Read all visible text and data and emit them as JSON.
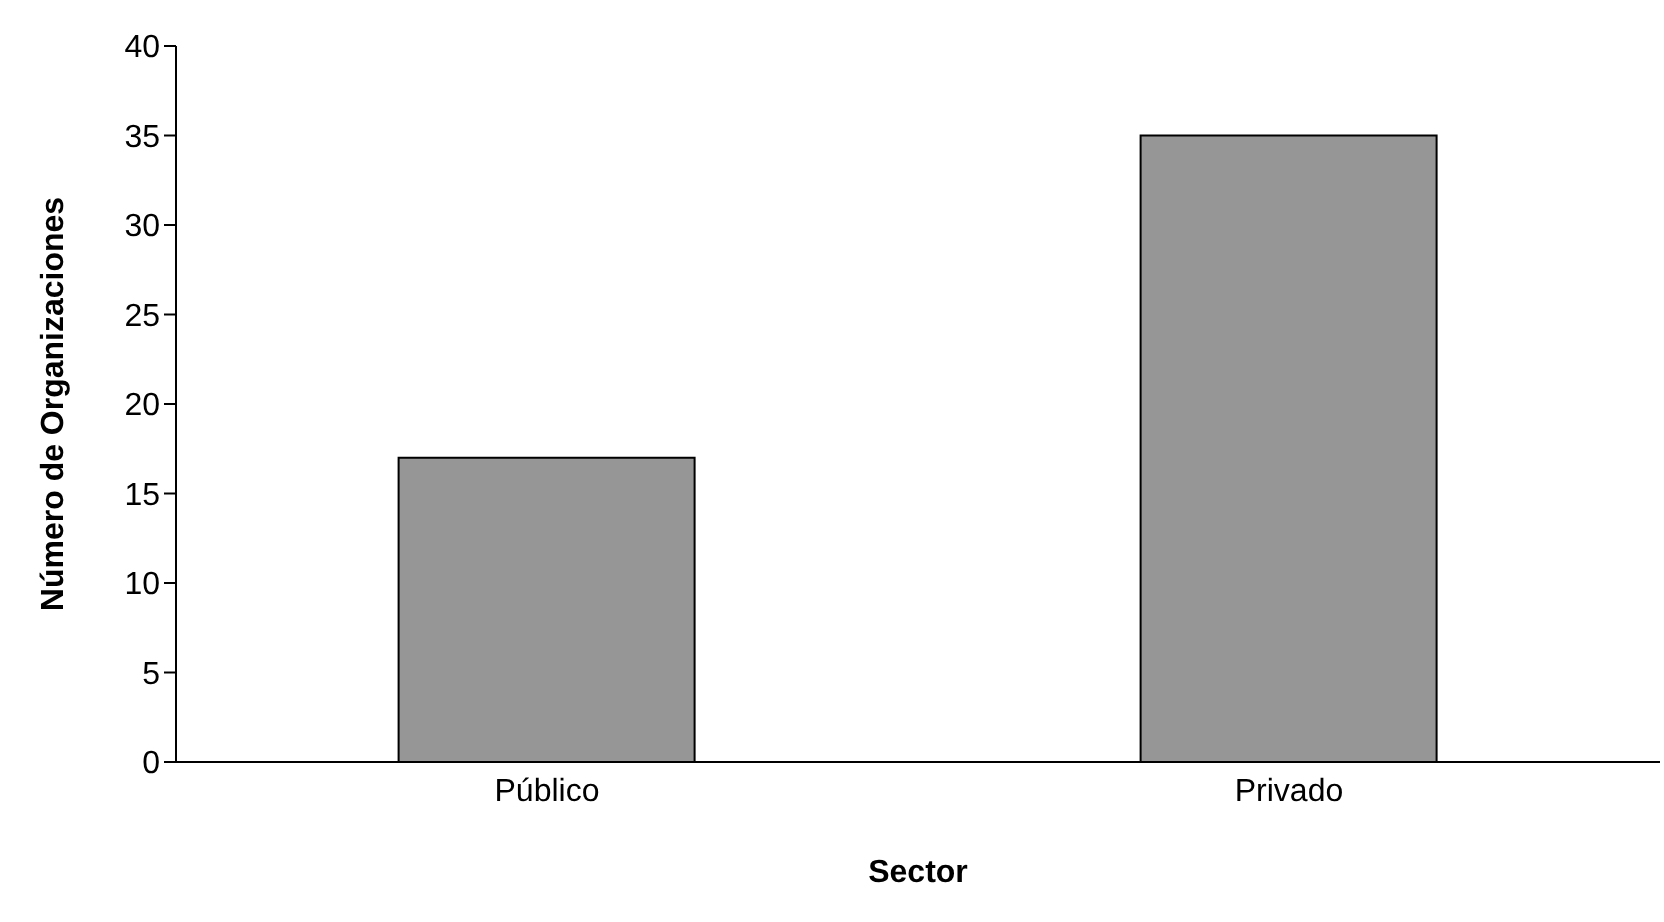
{
  "chart_data": {
    "type": "bar",
    "xlabel": "Sector",
    "ylabel": "Número de Organizaciones",
    "categories": [
      "Público",
      "Privado"
    ],
    "values": [
      17,
      35
    ],
    "color": "#969696",
    "ylim": [
      0,
      40
    ],
    "yticks": [
      0,
      5,
      10,
      15,
      20,
      25,
      30,
      35,
      40
    ],
    "grid": false,
    "legend": false
  }
}
